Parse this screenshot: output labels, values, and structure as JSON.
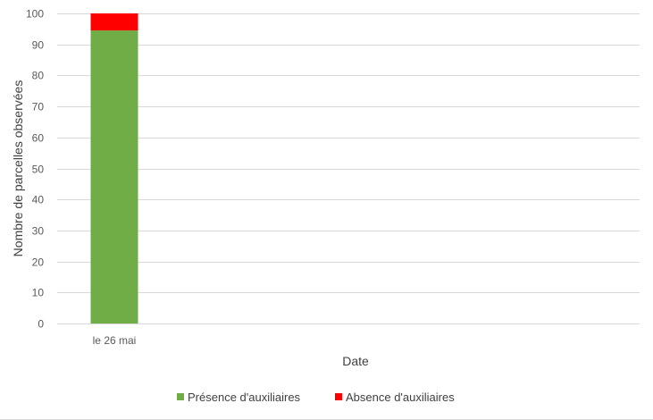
{
  "chart_data": {
    "type": "bar",
    "stacked": true,
    "categories": [
      "le 26 mai"
    ],
    "series": [
      {
        "name": "Présence d'auxiliaires",
        "values": [
          94.5
        ],
        "color": "#70AD47"
      },
      {
        "name": "Absence d'auxiliaires",
        "values": [
          5.5
        ],
        "color": "#FF0000"
      }
    ],
    "xlabel": "Date",
    "ylabel": "Nombre de parcelles observées",
    "ylim": [
      0,
      100
    ],
    "yticks": [
      0,
      10,
      20,
      30,
      40,
      50,
      60,
      70,
      80,
      90,
      100
    ],
    "grid": true,
    "legend_position": "bottom"
  }
}
